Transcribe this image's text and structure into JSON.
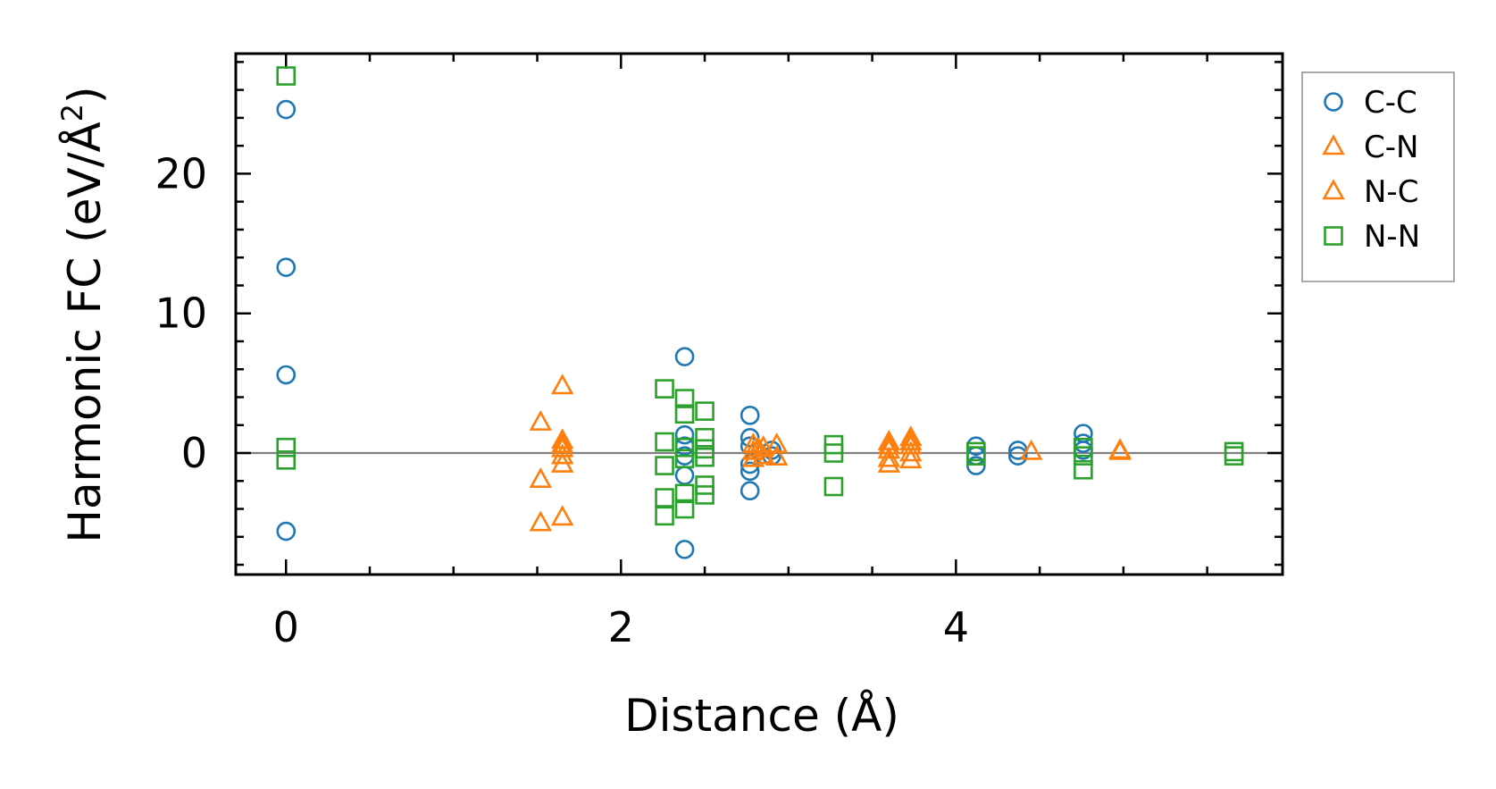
{
  "chart_data": {
    "type": "scatter",
    "title": "",
    "xlabel": "Distance (Å)",
    "ylabel_main": "Harmonic FC (eV/Å",
    "ylabel_sup": "2",
    "ylabel_close": ")",
    "xlim": [
      -0.3,
      5.95
    ],
    "ylim": [
      -8.7,
      28.6
    ],
    "x_ticks": [
      {
        "value": 0,
        "label": "0"
      },
      {
        "value": 2,
        "label": "2"
      },
      {
        "value": 4,
        "label": "4"
      }
    ],
    "x_minor_ticks": [
      0.5,
      1,
      1.5,
      2.5,
      3,
      3.5,
      4.5,
      5,
      5.5
    ],
    "y_ticks": [
      {
        "value": 0,
        "label": "0"
      },
      {
        "value": 10,
        "label": "10"
      },
      {
        "value": 20,
        "label": "20"
      }
    ],
    "y_minor_ticks": [
      -8,
      -6,
      -4,
      -2,
      2,
      4,
      6,
      8,
      12,
      14,
      16,
      18,
      22,
      24,
      26,
      28
    ],
    "zero_line": 0,
    "legend_position": "outside-right-top",
    "series": [
      {
        "name": "C-C",
        "marker": "circle",
        "color": "#1f77b4",
        "points": [
          [
            0,
            24.6
          ],
          [
            0,
            13.3
          ],
          [
            0,
            5.6
          ],
          [
            0,
            -5.6
          ],
          [
            2.38,
            6.9
          ],
          [
            2.38,
            1.3
          ],
          [
            2.38,
            0.5
          ],
          [
            2.38,
            -0.2
          ],
          [
            2.38,
            -1.6
          ],
          [
            2.38,
            -6.9
          ],
          [
            2.77,
            2.7
          ],
          [
            2.77,
            1.1
          ],
          [
            2.77,
            0.5
          ],
          [
            2.77,
            -0.8
          ],
          [
            2.77,
            -1.3
          ],
          [
            2.77,
            -2.7
          ],
          [
            2.9,
            0.2
          ],
          [
            2.9,
            -0.2
          ],
          [
            4.12,
            0.5
          ],
          [
            4.12,
            -0.2
          ],
          [
            4.12,
            -0.9
          ],
          [
            4.37,
            0.2
          ],
          [
            4.37,
            -0.2
          ],
          [
            4.76,
            1.4
          ],
          [
            4.76,
            0.7
          ],
          [
            4.76,
            0.2
          ]
        ]
      },
      {
        "name": "C-N",
        "marker": "triangle",
        "color": "#ff7f0e",
        "points": [
          [
            1.52,
            2.2
          ],
          [
            1.52,
            -1.9
          ],
          [
            1.52,
            -5.0
          ],
          [
            1.65,
            4.8
          ],
          [
            1.65,
            0.9
          ],
          [
            1.65,
            0.3
          ],
          [
            1.65,
            -0.2
          ],
          [
            1.65,
            -0.8
          ],
          [
            1.65,
            -4.6
          ],
          [
            2.79,
            0.6
          ],
          [
            2.79,
            0.1
          ],
          [
            2.79,
            -0.4
          ],
          [
            2.85,
            0.4
          ],
          [
            2.85,
            -0.2
          ],
          [
            2.93,
            0.6
          ],
          [
            2.93,
            -0.3
          ],
          [
            3.6,
            0.8
          ],
          [
            3.6,
            0.2
          ],
          [
            3.6,
            -0.4
          ],
          [
            3.6,
            -0.8
          ],
          [
            3.73,
            1.1
          ],
          [
            3.73,
            0.5
          ],
          [
            3.73,
            0
          ],
          [
            3.73,
            -0.5
          ],
          [
            4.45,
            0.1
          ],
          [
            4.98,
            0.1
          ]
        ]
      },
      {
        "name": "N-C",
        "marker": "triangle",
        "color": "#ff7f0e",
        "points": [
          [
            1.65,
            0.6
          ],
          [
            2.82,
            0.3
          ],
          [
            3.6,
            0.5
          ],
          [
            3.73,
            0.8
          ],
          [
            4.98,
            0.2
          ]
        ]
      },
      {
        "name": "N-N",
        "marker": "square",
        "color": "#2ca02c",
        "points": [
          [
            0,
            27.0
          ],
          [
            0,
            0.4
          ],
          [
            0,
            -0.5
          ],
          [
            2.26,
            4.6
          ],
          [
            2.26,
            0.8
          ],
          [
            2.26,
            -0.9
          ],
          [
            2.26,
            -3.2
          ],
          [
            2.26,
            -4.5
          ],
          [
            2.38,
            3.9
          ],
          [
            2.38,
            2.8
          ],
          [
            2.38,
            0.4
          ],
          [
            2.38,
            -0.4
          ],
          [
            2.38,
            -2.9
          ],
          [
            2.38,
            -4.0
          ],
          [
            2.5,
            3.0
          ],
          [
            2.5,
            1.1
          ],
          [
            2.5,
            0.3
          ],
          [
            2.5,
            -0.3
          ],
          [
            2.5,
            -2.3
          ],
          [
            2.5,
            -3.0
          ],
          [
            3.27,
            0.6
          ],
          [
            3.27,
            0
          ],
          [
            3.27,
            -2.4
          ],
          [
            4.12,
            0.1
          ],
          [
            4.12,
            -0.2
          ],
          [
            4.76,
            0.4
          ],
          [
            4.76,
            -0.2
          ],
          [
            4.76,
            -1.2
          ],
          [
            5.66,
            0.1
          ],
          [
            5.66,
            -0.2
          ]
        ]
      }
    ]
  }
}
